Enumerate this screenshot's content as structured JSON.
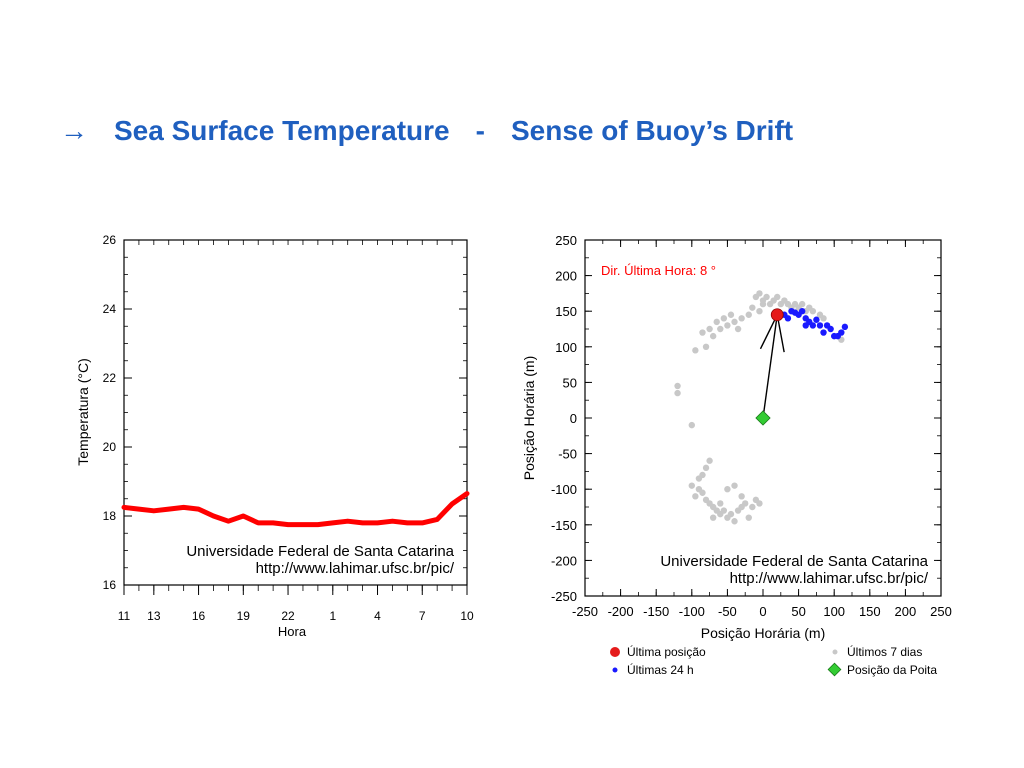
{
  "slide": {
    "arrow": "→",
    "title_left": "Sea Surface Temperature",
    "separator": "-",
    "title_right": "Sense of Buoy’s Drift"
  },
  "colors": {
    "title": "#1f5fbf",
    "temp_line": "#ff0000",
    "last_position": "#e51b1b",
    "last_24h": "#1a1aff",
    "last_7_days": "#c8c8c8",
    "mooring": "#33cc33",
    "annotation": "#ff0000"
  },
  "chart_data": [
    {
      "type": "line",
      "ylabel": "Temperatura (°C)",
      "xlabel": "Hora",
      "ylim": [
        16,
        26
      ],
      "yticks": [
        16,
        18,
        20,
        22,
        24,
        26
      ],
      "xticks": [
        "11",
        "13",
        "16",
        "19",
        "22",
        "1",
        "4",
        "7",
        "10"
      ],
      "xtick_index": [
        0,
        2,
        5,
        8,
        11,
        14,
        17,
        20,
        23
      ],
      "grid": false,
      "series": [
        {
          "values": [
            18.25,
            18.2,
            18.15,
            18.2,
            18.25,
            18.2,
            18.0,
            17.85,
            18.0,
            17.8,
            17.8,
            17.75,
            17.75,
            17.75,
            17.8,
            17.85,
            17.8,
            17.8,
            17.85,
            17.8,
            17.8,
            17.9,
            18.35,
            18.65
          ]
        }
      ],
      "credit_line1": "Universidade Federal de Santa Catarina",
      "credit_line2": "http://www.lahimar.ufsc.br/pic/"
    },
    {
      "type": "scatter",
      "xlabel": "Posição Horária (m)",
      "ylabel": "Posição Horária (m)",
      "xlim": [
        -250,
        250
      ],
      "ylim": [
        -250,
        250
      ],
      "ticks": [
        -250,
        -200,
        -150,
        -100,
        -50,
        0,
        50,
        100,
        150,
        200,
        250
      ],
      "grid": false,
      "annotation": "Dir. Última Hora:   8 °",
      "drift_direction_deg": 8,
      "credit_line1": "Universidade Federal de Santa Catarina",
      "credit_line2": "http://www.lahimar.ufsc.br/pic/",
      "legend": {
        "last_position": "Última posição",
        "last_24h": "Últimas 24 h",
        "last_7_days": "Últimos 7 dias",
        "mooring": "Posição da Poita"
      },
      "series": [
        {
          "name": "Últimos 7 dias",
          "points": [
            [
              -10,
              170
            ],
            [
              -5,
              175
            ],
            [
              0,
              165
            ],
            [
              5,
              170
            ],
            [
              10,
              160
            ],
            [
              15,
              165
            ],
            [
              20,
              170
            ],
            [
              -15,
              155
            ],
            [
              -5,
              150
            ],
            [
              0,
              160
            ],
            [
              25,
              160
            ],
            [
              30,
              165
            ],
            [
              35,
              160
            ],
            [
              40,
              155
            ],
            [
              45,
              160
            ],
            [
              50,
              155
            ],
            [
              55,
              160
            ],
            [
              60,
              150
            ],
            [
              65,
              155
            ],
            [
              70,
              150
            ],
            [
              80,
              145
            ],
            [
              85,
              140
            ],
            [
              -20,
              145
            ],
            [
              -30,
              140
            ],
            [
              -40,
              135
            ],
            [
              -50,
              130
            ],
            [
              -60,
              125
            ],
            [
              -70,
              115
            ],
            [
              -75,
              125
            ],
            [
              -65,
              135
            ],
            [
              -55,
              140
            ],
            [
              -45,
              145
            ],
            [
              -35,
              125
            ],
            [
              -80,
              100
            ],
            [
              -95,
              95
            ],
            [
              -85,
              120
            ],
            [
              -120,
              45
            ],
            [
              -120,
              35
            ],
            [
              -100,
              -10
            ],
            [
              -100,
              -95
            ],
            [
              -95,
              -110
            ],
            [
              -90,
              -100
            ],
            [
              -85,
              -105
            ],
            [
              -80,
              -115
            ],
            [
              -75,
              -120
            ],
            [
              -70,
              -125
            ],
            [
              -65,
              -130
            ],
            [
              -60,
              -135
            ],
            [
              -55,
              -130
            ],
            [
              -50,
              -140
            ],
            [
              -45,
              -135
            ],
            [
              -40,
              -145
            ],
            [
              -35,
              -130
            ],
            [
              -30,
              -125
            ],
            [
              -25,
              -120
            ],
            [
              -20,
              -140
            ],
            [
              -15,
              -125
            ],
            [
              -10,
              -115
            ],
            [
              -5,
              -120
            ],
            [
              -90,
              -85
            ],
            [
              -85,
              -80
            ],
            [
              -80,
              -70
            ],
            [
              -75,
              -60
            ],
            [
              -70,
              -140
            ],
            [
              -60,
              -120
            ],
            [
              -50,
              -100
            ],
            [
              -40,
              -95
            ],
            [
              -30,
              -110
            ],
            [
              110,
              110
            ]
          ]
        },
        {
          "name": "Últimas 24 h",
          "points": [
            [
              30,
              145
            ],
            [
              35,
              140
            ],
            [
              40,
              150
            ],
            [
              45,
              148
            ],
            [
              50,
              145
            ],
            [
              55,
              150
            ],
            [
              60,
              140
            ],
            [
              65,
              135
            ],
            [
              60,
              130
            ],
            [
              70,
              130
            ],
            [
              75,
              138
            ],
            [
              80,
              130
            ],
            [
              85,
              120
            ],
            [
              90,
              130
            ],
            [
              95,
              125
            ],
            [
              100,
              115
            ],
            [
              105,
              115
            ],
            [
              110,
              120
            ],
            [
              115,
              128
            ]
          ]
        },
        {
          "name": "Última posição",
          "points": [
            [
              20,
              145
            ]
          ]
        },
        {
          "name": "Posição da Poita",
          "points": [
            [
              0,
              0
            ]
          ]
        }
      ]
    }
  ]
}
